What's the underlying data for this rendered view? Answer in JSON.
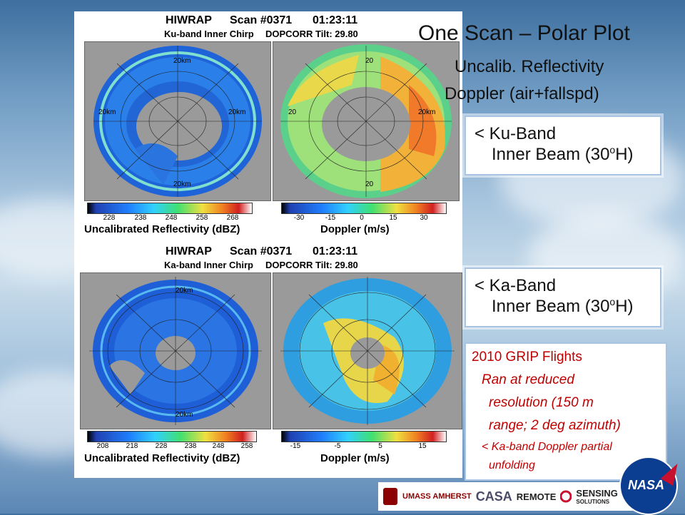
{
  "slide": {
    "title": "One Scan – Polar Plot",
    "subtitle_1": "Uncalib. Reflectivity",
    "subtitle_2": "Doppler (air+fallspd)"
  },
  "callouts": {
    "ku_line1": "< Ku-Band",
    "ku_line2": "Inner Beam (30",
    "ku_sup": "o",
    "ku_end": "H)",
    "ka_line1": "< Ka-Band",
    "ka_line2": "Inner Beam (30",
    "ka_sup": "o",
    "ka_end": "H)"
  },
  "grip_box": {
    "heading": "2010 GRIP Flights",
    "line1": "Ran at reduced",
    "line2": "resolution (150 m",
    "line3": "range; 2 deg azimuth)",
    "line4": "< Ka-band Doppler partial",
    "line5": "unfolding"
  },
  "ku_panel": {
    "instrument": "HIWRAP",
    "scan": "Scan #0371",
    "time": "01:23:11",
    "mode": "Ku-band Inner Chirp",
    "tilt": "DOPCORR Tilt: 29.80",
    "range_labels": [
      "20km",
      "20km",
      "20km",
      "20km"
    ],
    "doppler_range_labels": [
      "20",
      "20",
      "20km",
      "20"
    ],
    "refl_title": "Uncalibrated Reflectivity (dBZ)",
    "refl_ticks": [
      "228",
      "238",
      "248",
      "258",
      "268"
    ],
    "dop_title": "Doppler (m/s)",
    "dop_ticks": [
      "-30",
      "-15",
      "0",
      "15",
      "30"
    ]
  },
  "ka_panel": {
    "instrument": "HIWRAP",
    "scan": "Scan #0371",
    "time": "01:23:11",
    "mode": "Ka-band Inner Chirp",
    "tilt": "DOPCORR Tilt: 29.80",
    "range_labels": [
      "20km",
      "20km"
    ],
    "refl_title": "Uncalibrated Reflectivity (dBZ)",
    "refl_ticks": [
      "208",
      "218",
      "228",
      "238",
      "248",
      "258"
    ],
    "dop_title": "Doppler (m/s)",
    "dop_ticks": [
      "-15",
      "-5",
      "5",
      "15"
    ]
  },
  "logos": {
    "umass": "UMASS AMHERST",
    "casa": "CASA",
    "remote": "REMOTE",
    "sensing": "SENSING",
    "solutions": "SOLUTIONS",
    "nasa": "NASA"
  },
  "colors": {
    "grip_text": "#c00000",
    "callout_border": "#a9c3e3",
    "nasa_blue": "#0b3d91"
  }
}
